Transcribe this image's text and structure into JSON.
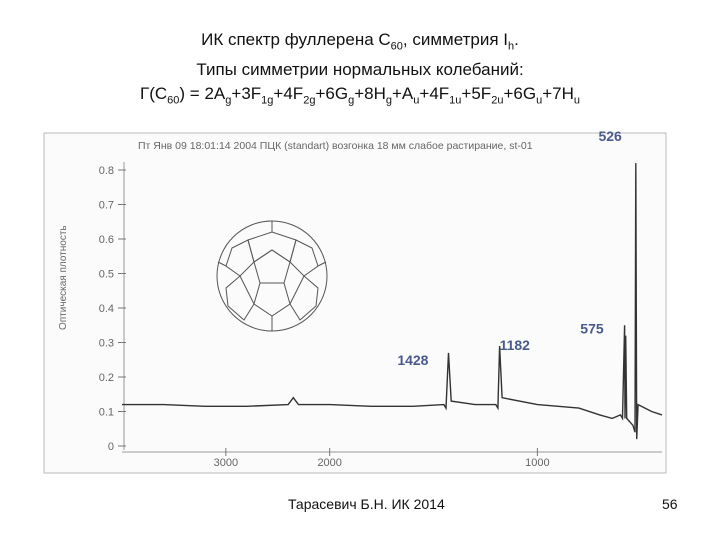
{
  "header": {
    "lines": [
      [
        {
          "t": "ИК спектр фуллерена C"
        },
        {
          "t": "60",
          "sub": true
        },
        {
          "t": ", симметрия I"
        },
        {
          "t": "h",
          "sub": true
        },
        {
          "t": "."
        }
      ],
      [
        {
          "t": "Типы симметрии нормальных колебаний:"
        }
      ],
      [
        {
          "t": "Г(C"
        },
        {
          "t": "60",
          "sub": true
        },
        {
          "t": ") = 2A"
        },
        {
          "t": "g",
          "sub": true
        },
        {
          "t": "+3F"
        },
        {
          "t": "1g",
          "sub": true
        },
        {
          "t": "+4F"
        },
        {
          "t": "2g",
          "sub": true
        },
        {
          "t": "+6G"
        },
        {
          "t": "g",
          "sub": true
        },
        {
          "t": "+8H"
        },
        {
          "t": "g",
          "sub": true
        },
        {
          "t": "+A"
        },
        {
          "t": "u",
          "sub": true
        },
        {
          "t": "+4F"
        },
        {
          "t": "1u",
          "sub": true
        },
        {
          "t": "+5F"
        },
        {
          "t": "2u",
          "sub": true
        },
        {
          "t": "+6G"
        },
        {
          "t": "u",
          "sub": true
        },
        {
          "t": "+7H"
        },
        {
          "t": "u",
          "sub": true
        }
      ]
    ]
  },
  "chart_data": {
    "type": "line",
    "subtitle": "Пт Янв 09 18:01:14 2004 ПЦК (standart) возгонка 18 мм слабое растирание, st-01",
    "y_label": "Оптическая плотность",
    "x": [
      4000,
      3600,
      3200,
      2800,
      2400,
      2350,
      2300,
      2000,
      1800,
      1600,
      1450,
      1440,
      1428,
      1415,
      1300,
      1200,
      1190,
      1182,
      1170,
      1000,
      800,
      700,
      640,
      600,
      590,
      580,
      578,
      575,
      570,
      540,
      530,
      526,
      522,
      515,
      450,
      400
    ],
    "series": [
      {
        "color": "#333333",
        "values": [
          0.12,
          0.12,
          0.115,
          0.115,
          0.12,
          0.14,
          0.12,
          0.12,
          0.115,
          0.115,
          0.12,
          0.11,
          0.27,
          0.13,
          0.12,
          0.12,
          0.11,
          0.29,
          0.14,
          0.12,
          0.11,
          0.09,
          0.08,
          0.09,
          0.08,
          0.35,
          0.08,
          0.32,
          0.08,
          0.06,
          0.04,
          0.82,
          0.02,
          0.12,
          0.1,
          0.09
        ]
      }
    ],
    "peak_labels": [
      526,
      575,
      1428,
      1182
    ],
    "peak_color": "#4a5a8c",
    "xlim": [
      4000,
      400
    ],
    "xticks": [
      3000,
      2000,
      1000
    ],
    "ylim": [
      0,
      0.8
    ],
    "yticks": [
      0,
      0.1,
      0.2,
      0.3,
      0.4,
      0.5,
      0.6,
      0.7,
      0.8
    ]
  },
  "footer": {
    "author": "Тарасевич Б.Н.  ИК 2014",
    "page": "56"
  }
}
